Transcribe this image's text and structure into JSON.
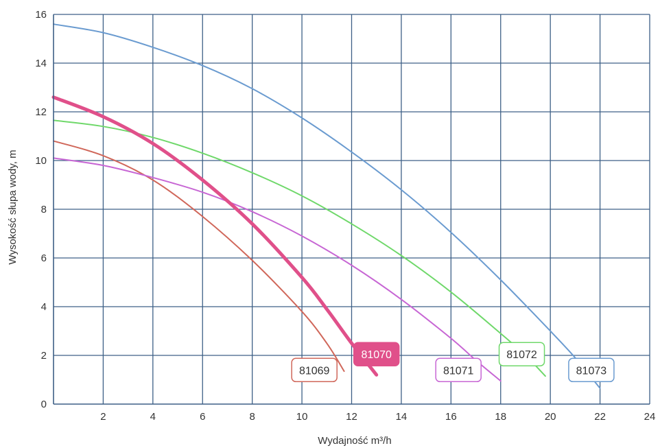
{
  "chart_data": {
    "type": "line",
    "title": "",
    "xlabel": "Wydajność m³/h",
    "ylabel": "Wysokość słupa wody, m",
    "xlim": [
      0,
      24
    ],
    "ylim": [
      0,
      16
    ],
    "x_ticks": [
      2,
      4,
      6,
      8,
      10,
      12,
      14,
      16,
      18,
      20,
      22,
      24
    ],
    "y_ticks": [
      0,
      2,
      4,
      6,
      8,
      10,
      12,
      14,
      16
    ],
    "grid": true,
    "legend": "inline labels near curve ends",
    "series": [
      {
        "name": "81069",
        "color": "#d0675a",
        "highlight": false,
        "points": [
          [
            0,
            10.8
          ],
          [
            2,
            10.2
          ],
          [
            4,
            9.2
          ],
          [
            6,
            7.7
          ],
          [
            8,
            5.9
          ],
          [
            10,
            3.8
          ],
          [
            11,
            2.5
          ],
          [
            11.7,
            1.35
          ]
        ]
      },
      {
        "name": "81070",
        "color": "#e0508a",
        "highlight": true,
        "points": [
          [
            0,
            12.6
          ],
          [
            2,
            11.8
          ],
          [
            4,
            10.7
          ],
          [
            6,
            9.2
          ],
          [
            8,
            7.4
          ],
          [
            10,
            5.2
          ],
          [
            11,
            3.9
          ],
          [
            12,
            2.5
          ],
          [
            13,
            1.2
          ]
        ]
      },
      {
        "name": "81071",
        "color": "#c766d4",
        "highlight": false,
        "points": [
          [
            0,
            10.1
          ],
          [
            2,
            9.8
          ],
          [
            4,
            9.3
          ],
          [
            6,
            8.7
          ],
          [
            8,
            7.9
          ],
          [
            10,
            6.9
          ],
          [
            12,
            5.7
          ],
          [
            14,
            4.3
          ],
          [
            16,
            2.7
          ],
          [
            17,
            1.8
          ],
          [
            18,
            0.95
          ]
        ]
      },
      {
        "name": "81072",
        "color": "#6fd86a",
        "highlight": false,
        "points": [
          [
            0,
            11.65
          ],
          [
            2,
            11.4
          ],
          [
            4,
            10.95
          ],
          [
            6,
            10.3
          ],
          [
            8,
            9.5
          ],
          [
            10,
            8.55
          ],
          [
            12,
            7.4
          ],
          [
            14,
            6.1
          ],
          [
            16,
            4.6
          ],
          [
            18,
            2.9
          ],
          [
            19,
            2.0
          ],
          [
            19.8,
            1.15
          ]
        ]
      },
      {
        "name": "81073",
        "color": "#6a9bd0",
        "highlight": false,
        "points": [
          [
            0,
            15.6
          ],
          [
            2,
            15.25
          ],
          [
            4,
            14.65
          ],
          [
            6,
            13.9
          ],
          [
            8,
            12.95
          ],
          [
            10,
            11.75
          ],
          [
            12,
            10.35
          ],
          [
            14,
            8.8
          ],
          [
            16,
            7.05
          ],
          [
            18,
            5.1
          ],
          [
            20,
            3.0
          ],
          [
            21,
            1.9
          ],
          [
            22,
            0.65
          ]
        ]
      }
    ],
    "labels": [
      {
        "text": "81069",
        "series": "81069",
        "x": 10.5,
        "y": 1.4
      },
      {
        "text": "81070",
        "series": "81070",
        "x": 13.0,
        "y": 2.05
      },
      {
        "text": "81071",
        "series": "81071",
        "x": 16.3,
        "y": 1.4
      },
      {
        "text": "81072",
        "series": "81072",
        "x": 18.85,
        "y": 2.05
      },
      {
        "text": "81073",
        "series": "81073",
        "x": 21.65,
        "y": 1.4
      }
    ]
  }
}
